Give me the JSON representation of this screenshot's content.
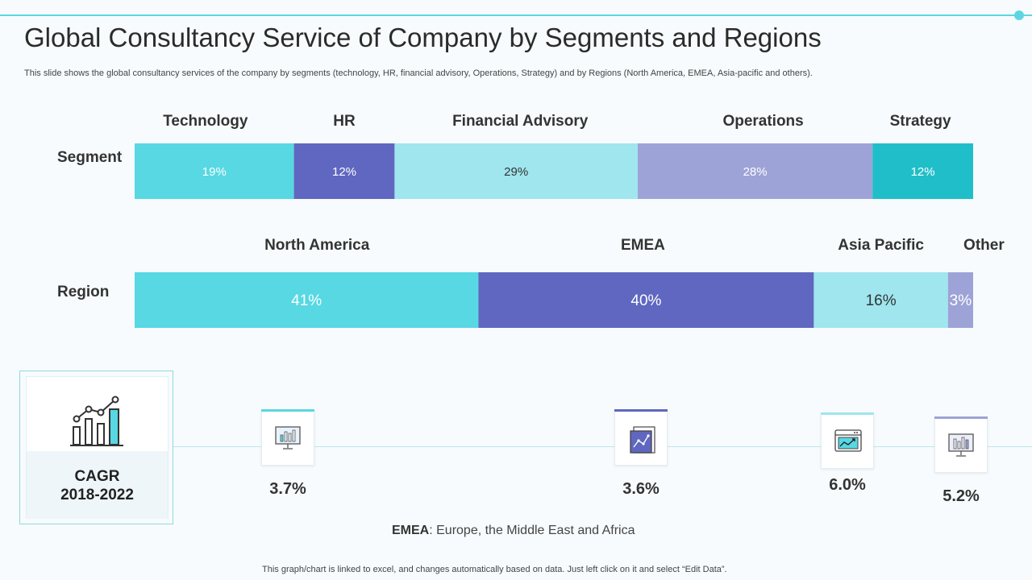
{
  "title": "Global Consultancy Service of Company by Segments and Regions",
  "subtitle": "This slide shows the global consultancy services of the company by segments (technology, HR, financial advisory, Operations, Strategy) and by Regions (North America, EMEA,  Asia-pacific and others).",
  "chart_data": [
    {
      "type": "bar",
      "stacked": true,
      "orientation": "horizontal",
      "row_label": "Segment",
      "categories": [
        "Technology",
        "HR",
        "Financial Advisory",
        "Operations",
        "Strategy"
      ],
      "values": [
        19,
        12,
        29,
        28,
        12
      ],
      "value_labels": [
        "19%",
        "12%",
        "29%",
        "28%",
        "12%"
      ],
      "colors": [
        "#57d8e3",
        "#5f67c0",
        "#9fe6ee",
        "#9da3d6",
        "#20bec8"
      ]
    },
    {
      "type": "bar",
      "stacked": true,
      "orientation": "horizontal",
      "row_label": "Region",
      "categories": [
        "North America",
        "EMEA",
        "Asia Pacific",
        "Other"
      ],
      "values": [
        41,
        40,
        16,
        3
      ],
      "value_labels": [
        "41%",
        "40%",
        "16%",
        "3%"
      ],
      "colors": [
        "#57d8e3",
        "#5f67c0",
        "#9fe6ee",
        "#9da3d6"
      ]
    }
  ],
  "cagr": {
    "line1": "CAGR",
    "line2": "2018-2022",
    "icon": "growth-bar-chart-icon",
    "items": [
      {
        "value": "3.7%",
        "icon": "monitor-chart-icon",
        "accent": "#5cd6e0"
      },
      {
        "value": "3.6%",
        "icon": "report-chart-icon",
        "accent": "#5f67c0"
      },
      {
        "value": "6.0%",
        "icon": "browser-trend-icon",
        "accent": "#9fe6ee"
      },
      {
        "value": "5.2%",
        "icon": "monitor-chart-icon",
        "accent": "#9da3d6"
      }
    ]
  },
  "footnote": {
    "bold": "EMEA",
    "text": ": Europe, the Middle East and Africa"
  },
  "bottom_note": "This graph/chart is linked to excel,  and changes automatically based on data. Just left click on it and select “Edit Data”."
}
